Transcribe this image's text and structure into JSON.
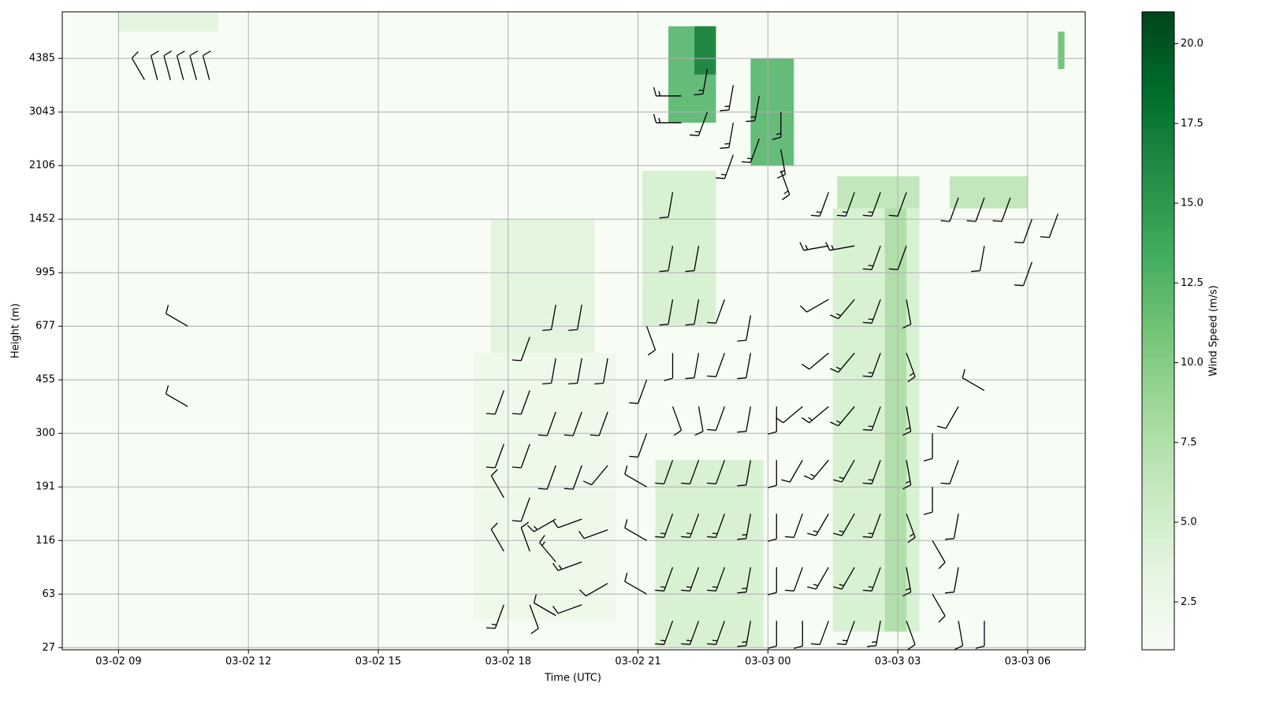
{
  "chart_data": {
    "type": "heatmap-barbs",
    "xlabel": "Time (UTC)",
    "ylabel": "Height (m)",
    "colorbar_label": "Wind Speed (m/s)",
    "xlim": [
      7.7,
      31.33
    ],
    "xticks": [
      {
        "value": 9,
        "label": "03-02 09"
      },
      {
        "value": 12,
        "label": "03-02 12"
      },
      {
        "value": 15,
        "label": "03-02 15"
      },
      {
        "value": 18,
        "label": "03-02 18"
      },
      {
        "value": 21,
        "label": "03-02 21"
      },
      {
        "value": 24,
        "label": "03-03 00"
      },
      {
        "value": 27,
        "label": "03-03 03"
      },
      {
        "value": 30,
        "label": "03-03 06"
      }
    ],
    "ylim": [
      -0.04,
      11.87
    ],
    "yticks": [
      {
        "value": 0,
        "label": "27"
      },
      {
        "value": 1,
        "label": "63"
      },
      {
        "value": 2,
        "label": "116"
      },
      {
        "value": 3,
        "label": "191"
      },
      {
        "value": 4,
        "label": "300"
      },
      {
        "value": 5,
        "label": "455"
      },
      {
        "value": 6,
        "label": "677"
      },
      {
        "value": 7,
        "label": "995"
      },
      {
        "value": 8,
        "label": "1452"
      },
      {
        "value": 9,
        "label": "2106"
      },
      {
        "value": 10,
        "label": "3043"
      },
      {
        "value": 11,
        "label": "4385"
      }
    ],
    "grid": true,
    "colormap": [
      "#f7fcf5",
      "#e5f5e0",
      "#c7e9c0",
      "#a1d99b",
      "#74c476",
      "#41ab5d",
      "#238b45",
      "#006d2c",
      "#00441b"
    ],
    "clim": [
      1,
      21
    ],
    "cticks": [
      {
        "value": 2.5,
        "label": "2.5"
      },
      {
        "value": 5,
        "label": "5.0"
      },
      {
        "value": 7.5,
        "label": "7.5"
      },
      {
        "value": 10,
        "label": "10.0"
      },
      {
        "value": 12.5,
        "label": "12.5"
      },
      {
        "value": 15,
        "label": "15.0"
      },
      {
        "value": 17.5,
        "label": "17.5"
      },
      {
        "value": 20,
        "label": "20.0"
      }
    ],
    "patches": [
      {
        "t": [
          9.0,
          11.3
        ],
        "level": [
          11.5,
          11.85
        ],
        "value": 4
      },
      {
        "t": [
          17.2,
          20.5
        ],
        "level": [
          0.5,
          5.5
        ],
        "value": 2.5
      },
      {
        "t": [
          17.6,
          20.0
        ],
        "level": [
          5.5,
          8.0
        ],
        "value": 4
      },
      {
        "t": [
          21.1,
          22.8
        ],
        "level": [
          6.0,
          8.9
        ],
        "value": 5
      },
      {
        "t": [
          21.4,
          23.9
        ],
        "level": [
          0.0,
          3.5
        ],
        "value": 5
      },
      {
        "t": [
          21.7,
          22.8
        ],
        "level": [
          9.8,
          11.6
        ],
        "value": 13
      },
      {
        "t": [
          22.3,
          22.8
        ],
        "level": [
          10.7,
          11.6
        ],
        "value": 17
      },
      {
        "t": [
          23.6,
          24.6
        ],
        "level": [
          9.0,
          11.0
        ],
        "value": 13
      },
      {
        "t": [
          25.6,
          27.5
        ],
        "level": [
          8.2,
          8.8
        ],
        "value": 7
      },
      {
        "t": [
          28.2,
          30.0
        ],
        "level": [
          8.2,
          8.8
        ],
        "value": 7
      },
      {
        "t": [
          25.5,
          27.5
        ],
        "level": [
          0.3,
          8.2
        ],
        "value": 5
      },
      {
        "t": [
          26.7,
          27.2
        ],
        "level": [
          0.3,
          8.2
        ],
        "value": 8
      },
      {
        "t": [
          30.7,
          30.85
        ],
        "level": [
          10.8,
          11.5
        ],
        "value": 12
      }
    ],
    "barbs": [
      [
        9.6,
        10.6,
        10,
        330
      ],
      [
        9.9,
        10.6,
        10,
        345
      ],
      [
        10.2,
        10.6,
        10,
        345
      ],
      [
        10.5,
        10.6,
        10,
        345
      ],
      [
        10.8,
        10.6,
        10,
        345
      ],
      [
        11.1,
        10.6,
        10,
        345
      ],
      [
        10.6,
        6.0,
        10,
        300
      ],
      [
        10.6,
        4.5,
        10,
        300
      ],
      [
        17.9,
        0.8,
        15,
        200
      ],
      [
        17.9,
        1.8,
        10,
        330
      ],
      [
        17.9,
        2.8,
        10,
        330
      ],
      [
        17.9,
        3.8,
        10,
        200
      ],
      [
        17.9,
        4.8,
        10,
        200
      ],
      [
        18.5,
        0.8,
        10,
        160
      ],
      [
        18.5,
        1.8,
        10,
        340
      ],
      [
        18.5,
        2.8,
        10,
        200
      ],
      [
        18.5,
        3.8,
        10,
        200
      ],
      [
        18.5,
        4.8,
        10,
        200
      ],
      [
        18.5,
        5.8,
        10,
        200
      ],
      [
        19.1,
        0.6,
        10,
        300
      ],
      [
        19.1,
        1.6,
        15,
        320
      ],
      [
        19.1,
        2.4,
        15,
        240
      ],
      [
        19.1,
        3.4,
        10,
        200
      ],
      [
        19.1,
        4.4,
        10,
        200
      ],
      [
        19.1,
        5.4,
        10,
        190
      ],
      [
        19.1,
        6.4,
        10,
        190
      ],
      [
        19.7,
        0.8,
        10,
        250
      ],
      [
        19.7,
        1.6,
        15,
        250
      ],
      [
        19.7,
        2.4,
        10,
        250
      ],
      [
        19.7,
        3.4,
        10,
        200
      ],
      [
        19.7,
        4.4,
        10,
        200
      ],
      [
        19.7,
        5.4,
        10,
        190
      ],
      [
        19.7,
        6.4,
        10,
        190
      ],
      [
        20.3,
        1.2,
        10,
        240
      ],
      [
        20.3,
        2.2,
        10,
        250
      ],
      [
        20.3,
        3.4,
        10,
        220
      ],
      [
        20.3,
        4.4,
        10,
        200
      ],
      [
        20.3,
        5.4,
        10,
        190
      ],
      [
        21.2,
        1.0,
        10,
        300
      ],
      [
        21.2,
        2.0,
        10,
        300
      ],
      [
        21.2,
        3.0,
        10,
        300
      ],
      [
        21.2,
        4.0,
        10,
        200
      ],
      [
        21.2,
        5.0,
        10,
        200
      ],
      [
        21.2,
        6.0,
        10,
        160
      ],
      [
        21.8,
        0.5,
        15,
        200
      ],
      [
        21.8,
        1.5,
        15,
        200
      ],
      [
        21.8,
        2.5,
        15,
        200
      ],
      [
        21.8,
        3.5,
        10,
        200
      ],
      [
        21.8,
        4.5,
        10,
        160
      ],
      [
        21.8,
        5.5,
        10,
        180
      ],
      [
        21.8,
        6.5,
        10,
        190
      ],
      [
        21.8,
        7.5,
        10,
        190
      ],
      [
        21.8,
        8.5,
        10,
        190
      ],
      [
        22.4,
        0.5,
        15,
        200
      ],
      [
        22.4,
        1.5,
        15,
        200
      ],
      [
        22.4,
        2.5,
        15,
        200
      ],
      [
        22.4,
        3.5,
        10,
        200
      ],
      [
        22.4,
        4.5,
        10,
        170
      ],
      [
        22.4,
        5.5,
        10,
        190
      ],
      [
        22.4,
        6.5,
        10,
        190
      ],
      [
        22.4,
        7.5,
        10,
        190
      ],
      [
        23.0,
        0.5,
        15,
        200
      ],
      [
        23.0,
        1.5,
        15,
        200
      ],
      [
        23.0,
        2.5,
        15,
        200
      ],
      [
        23.0,
        3.5,
        10,
        200
      ],
      [
        23.0,
        4.5,
        10,
        200
      ],
      [
        23.0,
        5.5,
        10,
        200
      ],
      [
        23.0,
        6.5,
        10,
        200
      ],
      [
        23.6,
        0.5,
        15,
        190
      ],
      [
        23.6,
        1.5,
        15,
        190
      ],
      [
        23.6,
        2.5,
        15,
        190
      ],
      [
        23.6,
        3.5,
        10,
        190
      ],
      [
        23.6,
        4.5,
        10,
        190
      ],
      [
        23.6,
        5.5,
        10,
        190
      ],
      [
        23.6,
        6.2,
        10,
        190
      ],
      [
        24.2,
        0.5,
        10,
        180
      ],
      [
        24.2,
        1.5,
        10,
        180
      ],
      [
        24.2,
        2.5,
        10,
        180
      ],
      [
        24.2,
        3.5,
        10,
        180
      ],
      [
        24.2,
        4.5,
        10,
        180
      ],
      [
        22.0,
        10.3,
        15,
        270
      ],
      [
        22.0,
        9.8,
        15,
        270
      ],
      [
        22.6,
        10.8,
        15,
        190
      ],
      [
        22.6,
        10.0,
        15,
        200
      ],
      [
        23.2,
        10.5,
        15,
        190
      ],
      [
        23.2,
        9.8,
        15,
        190
      ],
      [
        23.2,
        9.2,
        15,
        200
      ],
      [
        23.8,
        10.3,
        15,
        190
      ],
      [
        23.8,
        9.5,
        15,
        200
      ],
      [
        24.3,
        10.0,
        15,
        180
      ],
      [
        24.3,
        9.3,
        15,
        170
      ],
      [
        24.3,
        8.9,
        15,
        160
      ],
      [
        24.8,
        0.5,
        10,
        180
      ],
      [
        24.8,
        1.5,
        10,
        200
      ],
      [
        24.8,
        2.5,
        10,
        200
      ],
      [
        24.8,
        3.5,
        10,
        210
      ],
      [
        24.8,
        4.5,
        10,
        230
      ],
      [
        25.4,
        0.5,
        10,
        200
      ],
      [
        25.4,
        1.5,
        15,
        210
      ],
      [
        25.4,
        2.5,
        15,
        210
      ],
      [
        25.4,
        3.5,
        15,
        220
      ],
      [
        25.4,
        4.5,
        15,
        230
      ],
      [
        25.4,
        5.5,
        10,
        230
      ],
      [
        25.4,
        6.5,
        10,
        240
      ],
      [
        25.4,
        7.5,
        15,
        260
      ],
      [
        25.4,
        8.5,
        15,
        200
      ],
      [
        26.0,
        0.5,
        15,
        200
      ],
      [
        26.0,
        1.5,
        15,
        210
      ],
      [
        26.0,
        2.5,
        15,
        210
      ],
      [
        26.0,
        3.5,
        15,
        210
      ],
      [
        26.0,
        4.5,
        15,
        220
      ],
      [
        26.0,
        5.5,
        15,
        220
      ],
      [
        26.0,
        6.5,
        15,
        220
      ],
      [
        26.0,
        7.5,
        15,
        260
      ],
      [
        26.0,
        8.5,
        15,
        200
      ],
      [
        26.6,
        0.5,
        15,
        190
      ],
      [
        26.6,
        1.5,
        15,
        200
      ],
      [
        26.6,
        2.5,
        15,
        200
      ],
      [
        26.6,
        3.5,
        15,
        200
      ],
      [
        26.6,
        4.5,
        15,
        200
      ],
      [
        26.6,
        5.5,
        15,
        200
      ],
      [
        26.6,
        6.5,
        15,
        200
      ],
      [
        26.6,
        7.5,
        15,
        200
      ],
      [
        26.6,
        8.5,
        15,
        200
      ],
      [
        27.2,
        0.5,
        10,
        160
      ],
      [
        27.2,
        1.5,
        15,
        170
      ],
      [
        27.2,
        2.5,
        15,
        160
      ],
      [
        27.2,
        3.5,
        15,
        170
      ],
      [
        27.2,
        4.5,
        15,
        170
      ],
      [
        27.2,
        5.5,
        15,
        160
      ],
      [
        27.2,
        6.5,
        10,
        170
      ],
      [
        27.2,
        7.5,
        10,
        200
      ],
      [
        27.2,
        8.5,
        10,
        200
      ],
      [
        27.8,
        1.0,
        10,
        150
      ],
      [
        27.8,
        2.0,
        10,
        150
      ],
      [
        27.8,
        3.0,
        10,
        180
      ],
      [
        27.8,
        4.0,
        10,
        180
      ],
      [
        28.4,
        0.5,
        10,
        170
      ],
      [
        28.4,
        1.5,
        10,
        190
      ],
      [
        28.4,
        2.5,
        10,
        190
      ],
      [
        28.4,
        3.5,
        10,
        200
      ],
      [
        28.4,
        4.5,
        10,
        210
      ],
      [
        28.4,
        8.4,
        10,
        200
      ],
      [
        29.0,
        0.5,
        10,
        180
      ],
      [
        29.0,
        4.8,
        10,
        300
      ],
      [
        29.0,
        7.5,
        10,
        190
      ],
      [
        29.0,
        8.4,
        10,
        200
      ],
      [
        29.6,
        8.4,
        10,
        200
      ],
      [
        30.1,
        8.0,
        10,
        200
      ],
      [
        30.1,
        7.2,
        10,
        200
      ],
      [
        30.7,
        8.1,
        10,
        200
      ]
    ]
  }
}
